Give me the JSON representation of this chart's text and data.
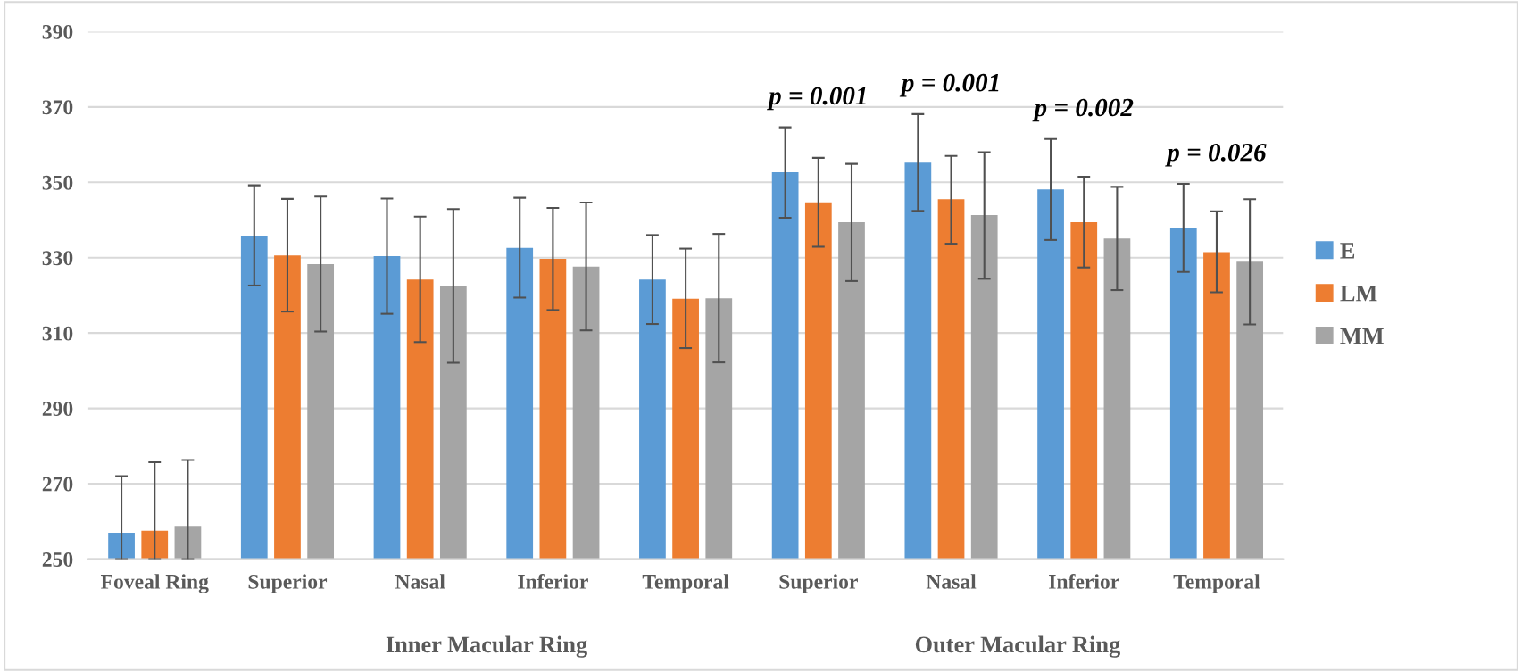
{
  "chart_data": {
    "type": "bar",
    "categories": [
      "Foveal Ring",
      "Superior",
      "Nasal",
      "Inferior",
      "Temporal",
      "Superior",
      "Nasal",
      "Inferior",
      "Temporal"
    ],
    "series": [
      {
        "name": "E",
        "color": "#5b9bd5",
        "values": [
          257,
          335.8,
          330.4,
          332.6,
          324.2,
          352.7,
          355.2,
          348.1,
          337.9
        ],
        "errors": [
          [
            250,
            272
          ],
          [
            322.6,
            349.2
          ],
          [
            315.1,
            345.7
          ],
          [
            319.4,
            345.9
          ],
          [
            312.4,
            336
          ],
          [
            340.6,
            364.6
          ],
          [
            342.4,
            368.1
          ],
          [
            334.7,
            361.5
          ],
          [
            326.2,
            349.6
          ]
        ]
      },
      {
        "name": "LM",
        "color": "#ed7d31",
        "values": [
          257.5,
          330.6,
          324.2,
          329.7,
          319.1,
          344.7,
          345.5,
          339.4,
          331.5
        ],
        "errors": [
          [
            250,
            275.7
          ],
          [
            315.7,
            345.6
          ],
          [
            307.6,
            340.9
          ],
          [
            316.1,
            343.2
          ],
          [
            306,
            332.4
          ],
          [
            332.9,
            356.5
          ],
          [
            333.7,
            357
          ],
          [
            327.4,
            351.5
          ],
          [
            320.8,
            342.3
          ]
        ]
      },
      {
        "name": "MM",
        "color": "#a5a5a5",
        "values": [
          258.8,
          328.3,
          322.5,
          327.6,
          319.2,
          339.4,
          341.3,
          335.1,
          328.9
        ],
        "errors": [
          [
            250,
            276.3
          ],
          [
            310.4,
            346.2
          ],
          [
            302.1,
            342.9
          ],
          [
            310.7,
            344.6
          ],
          [
            302.2,
            336.3
          ],
          [
            323.8,
            354.9
          ],
          [
            324.4,
            358
          ],
          [
            321.4,
            348.8
          ],
          [
            312.3,
            345.5
          ]
        ]
      }
    ],
    "ylim": [
      250,
      390
    ],
    "yticks": [
      250,
      270,
      290,
      310,
      330,
      350,
      370,
      390
    ],
    "grid": "y",
    "legend": "right",
    "annotations": [
      "Inner Macular Ring",
      "Outer Macular Ring",
      "p = 0.001",
      "p = 0.001",
      "p = 0.002",
      "p = 0.026"
    ]
  }
}
